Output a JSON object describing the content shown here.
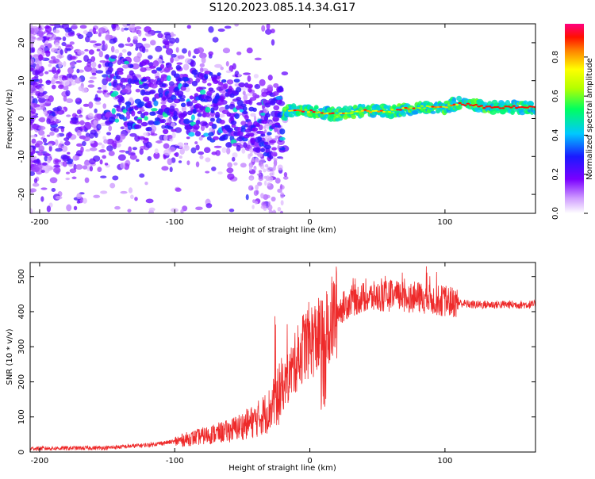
{
  "title": "S120.2023.085.14.34.G17",
  "chart_data": [
    {
      "type": "heatmap",
      "xlabel": "Height of straight line (km)",
      "ylabel": "Frequency (Hz)",
      "xlim": [
        -207,
        167
      ],
      "ylim": [
        -25,
        25
      ],
      "xticks": [
        -200,
        -100,
        0,
        100
      ],
      "yticks": [
        -20,
        -10,
        0,
        10,
        20
      ],
      "ridge": {
        "x": [
          -200,
          -180,
          -160,
          -140,
          -120,
          -100,
          -80,
          -60,
          -45,
          -35,
          -25,
          -15,
          0,
          20,
          40,
          60,
          80,
          100,
          110,
          130,
          150,
          167
        ],
        "y": [
          10,
          9,
          8,
          7,
          6,
          5,
          4,
          2,
          0,
          -2,
          -1,
          2,
          2,
          1,
          2,
          2,
          3,
          3,
          4,
          3,
          3,
          3
        ]
      },
      "colorbar": {
        "label": "Normalized spectral amplitude",
        "range": [
          0.0,
          0.97
        ],
        "ticks": [
          0.0,
          0.2,
          0.4,
          0.6,
          0.8
        ]
      },
      "grid": false
    },
    {
      "type": "line",
      "xlabel": "Height of straight line (km)",
      "ylabel": "SNR (10 * v/v)",
      "xlim": [
        -207,
        167
      ],
      "ylim": [
        0,
        540
      ],
      "xticks": [
        -200,
        -100,
        0,
        100
      ],
      "yticks": [
        0,
        100,
        200,
        300,
        400,
        500
      ],
      "series": [
        {
          "color": "#ee2a2a",
          "envelope": {
            "x": [
              -207,
              -150,
              -120,
              -100,
              -80,
              -60,
              -40,
              -30,
              -20,
              -10,
              -5,
              0,
              10,
              20,
              30,
              40,
              60,
              80,
              100,
              120,
              140,
              167
            ],
            "y": [
              10,
              12,
              20,
              30,
              45,
              60,
              90,
              120,
              180,
              260,
              300,
              320,
              330,
              400,
              430,
              440,
              445,
              440,
              430,
              420,
              420,
              420
            ]
          }
        }
      ],
      "grid": false
    }
  ]
}
